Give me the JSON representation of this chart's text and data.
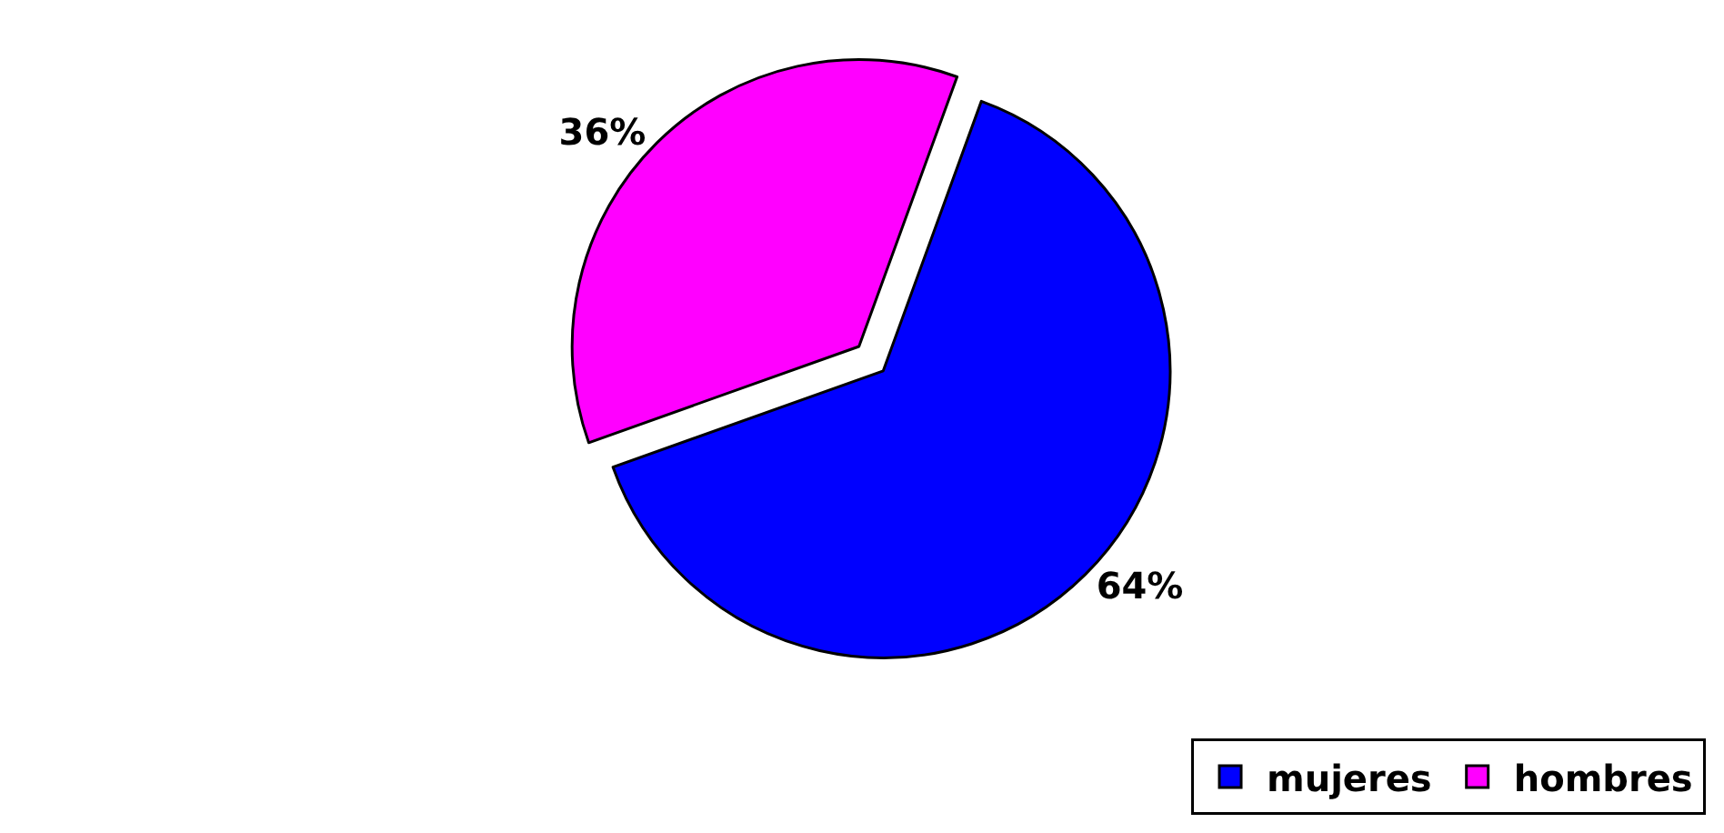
{
  "chart_data": {
    "type": "pie",
    "categories": [
      "mujeres",
      "hombres"
    ],
    "values": [
      64,
      36
    ],
    "colors": [
      "#0000ff",
      "#ff00ff"
    ],
    "value_labels": [
      "64%",
      "36%"
    ],
    "legend": "bottom right"
  }
}
